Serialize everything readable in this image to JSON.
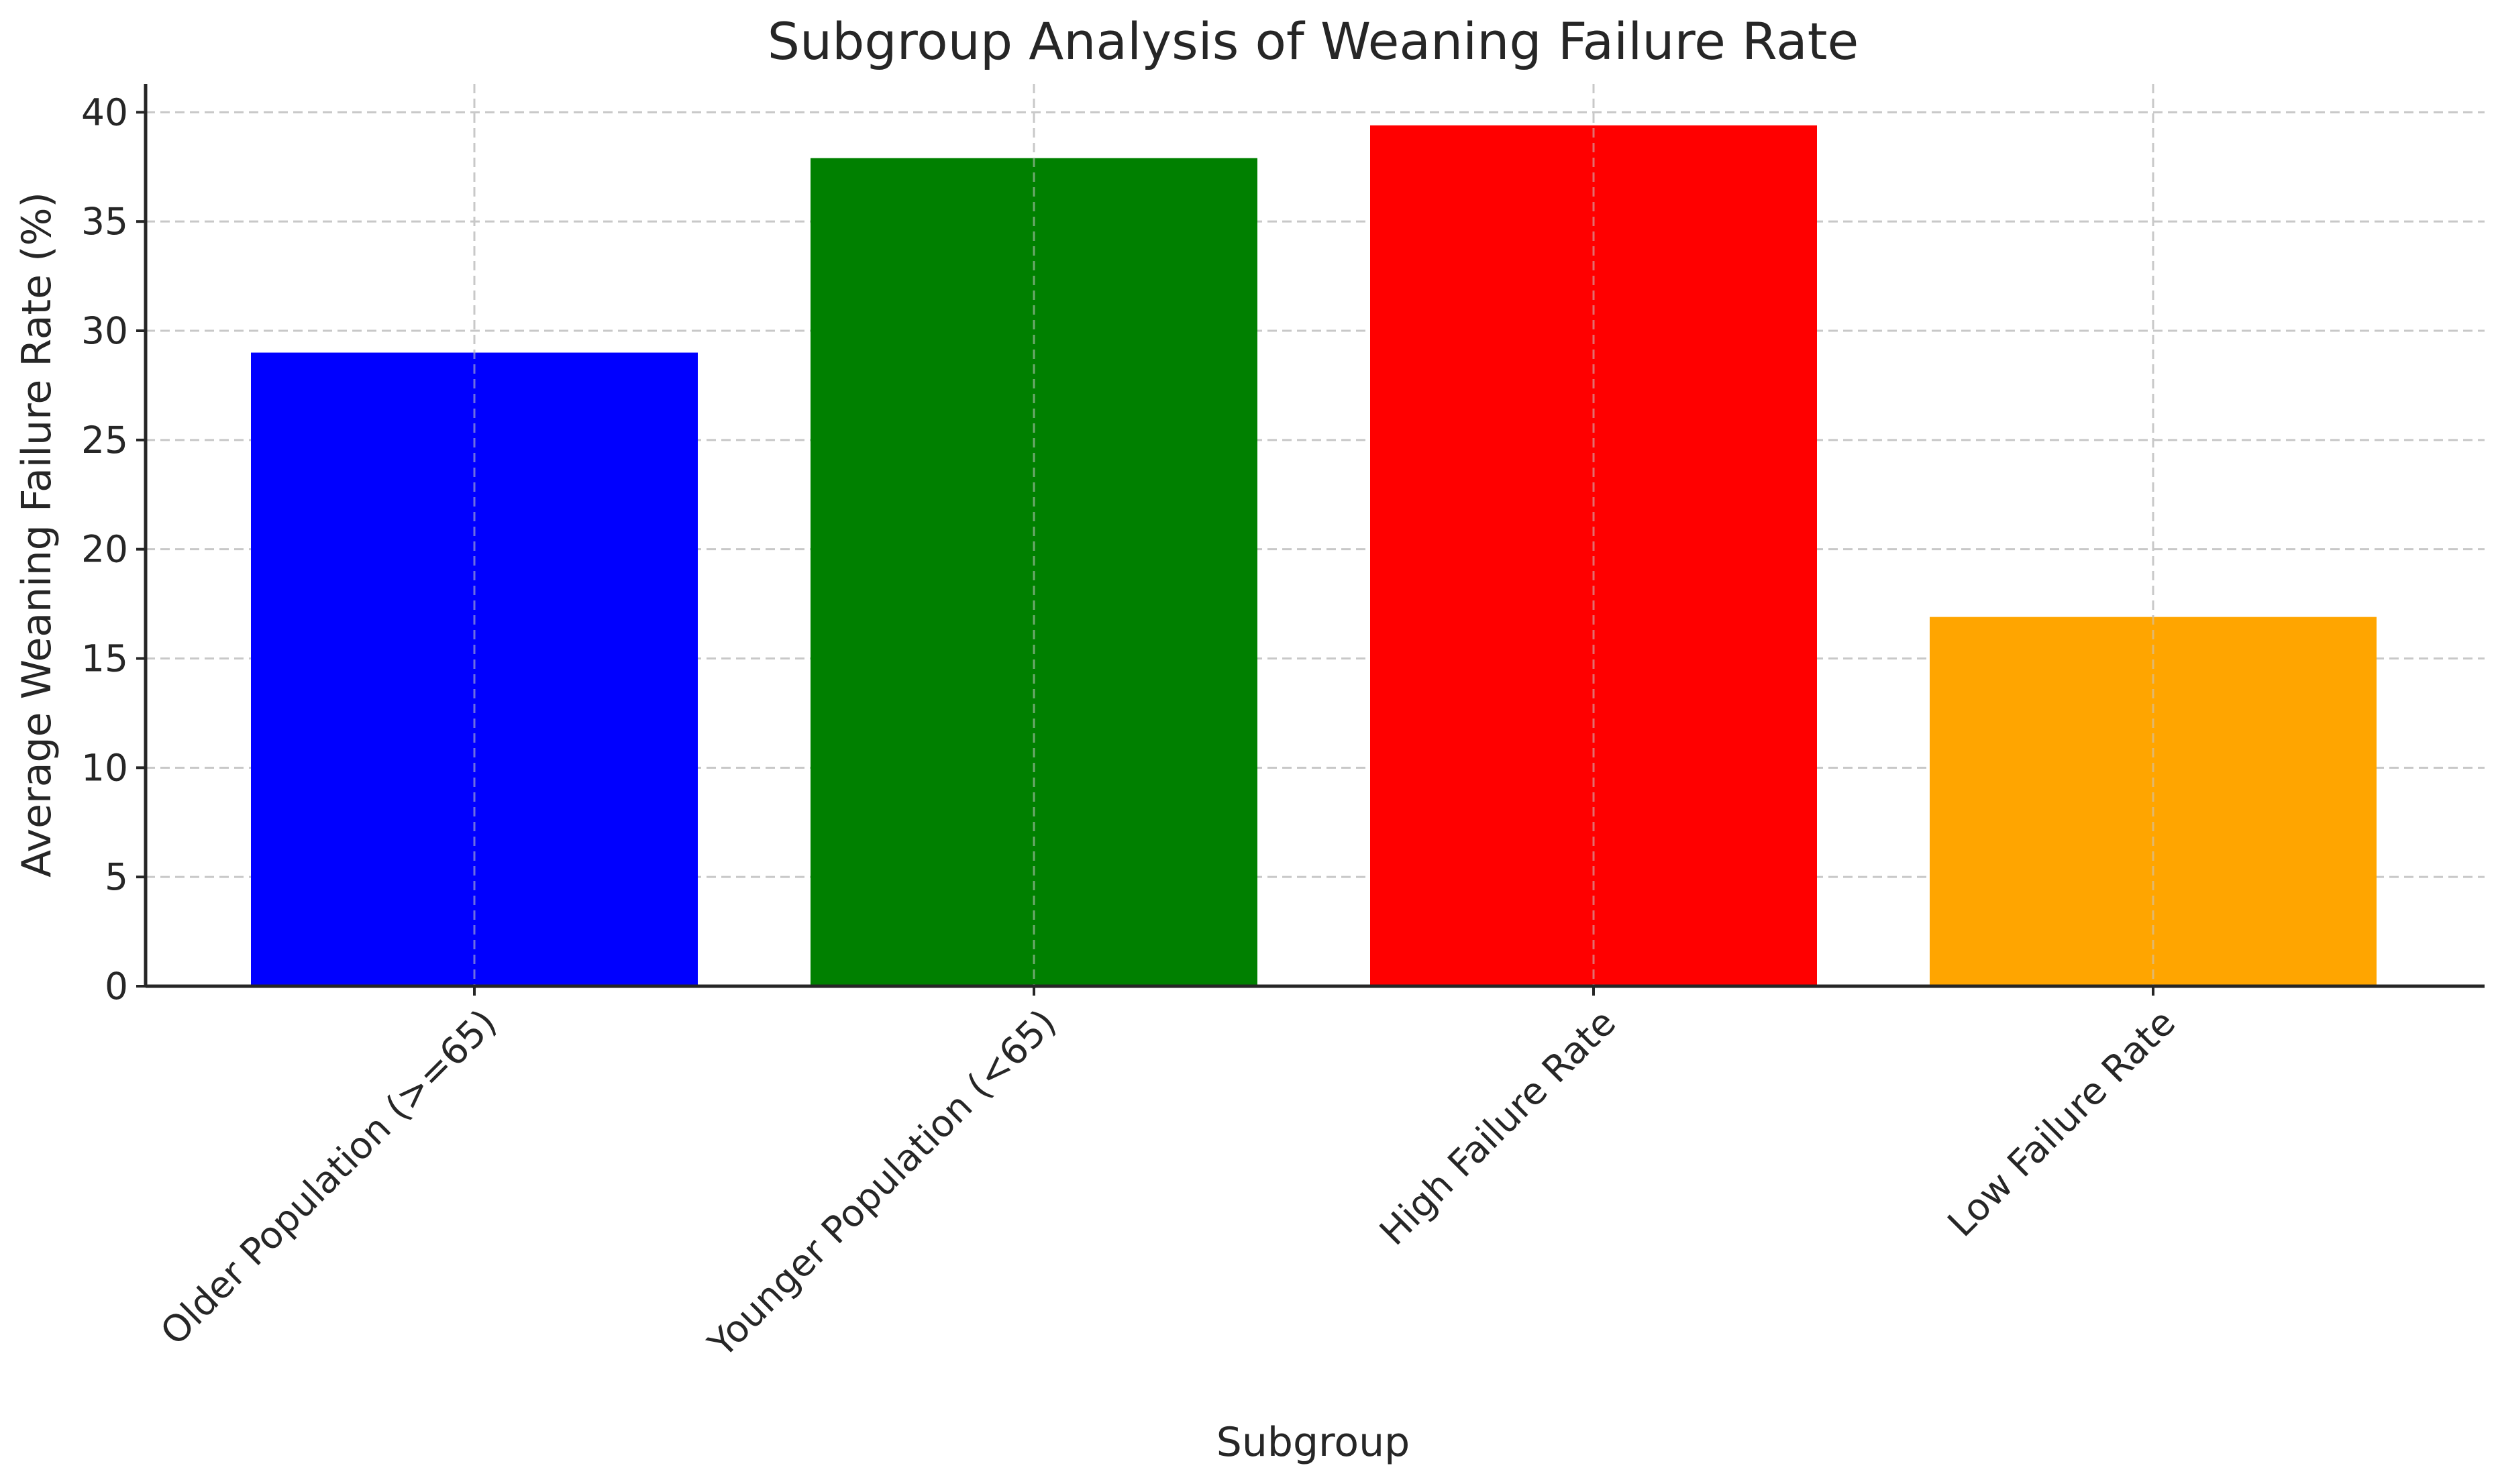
{
  "chart_data": {
    "type": "bar",
    "title": "Subgroup Analysis of Weaning Failure Rate",
    "xlabel": "Subgroup",
    "ylabel": "Average Weaning Failure Rate (%)",
    "categories": [
      "Older Population (>=65)",
      "Younger Population (<65)",
      "High Failure Rate",
      "Low Failure Rate"
    ],
    "values": [
      29.0,
      37.9,
      39.4,
      16.9
    ],
    "colors": [
      "#0000ff",
      "#008000",
      "#ff0000",
      "#ffa500"
    ],
    "ylim": [
      0,
      41.3
    ],
    "yticks": [
      0,
      5,
      10,
      15,
      20,
      25,
      30,
      35,
      40
    ],
    "grid": true,
    "legend": "none"
  }
}
